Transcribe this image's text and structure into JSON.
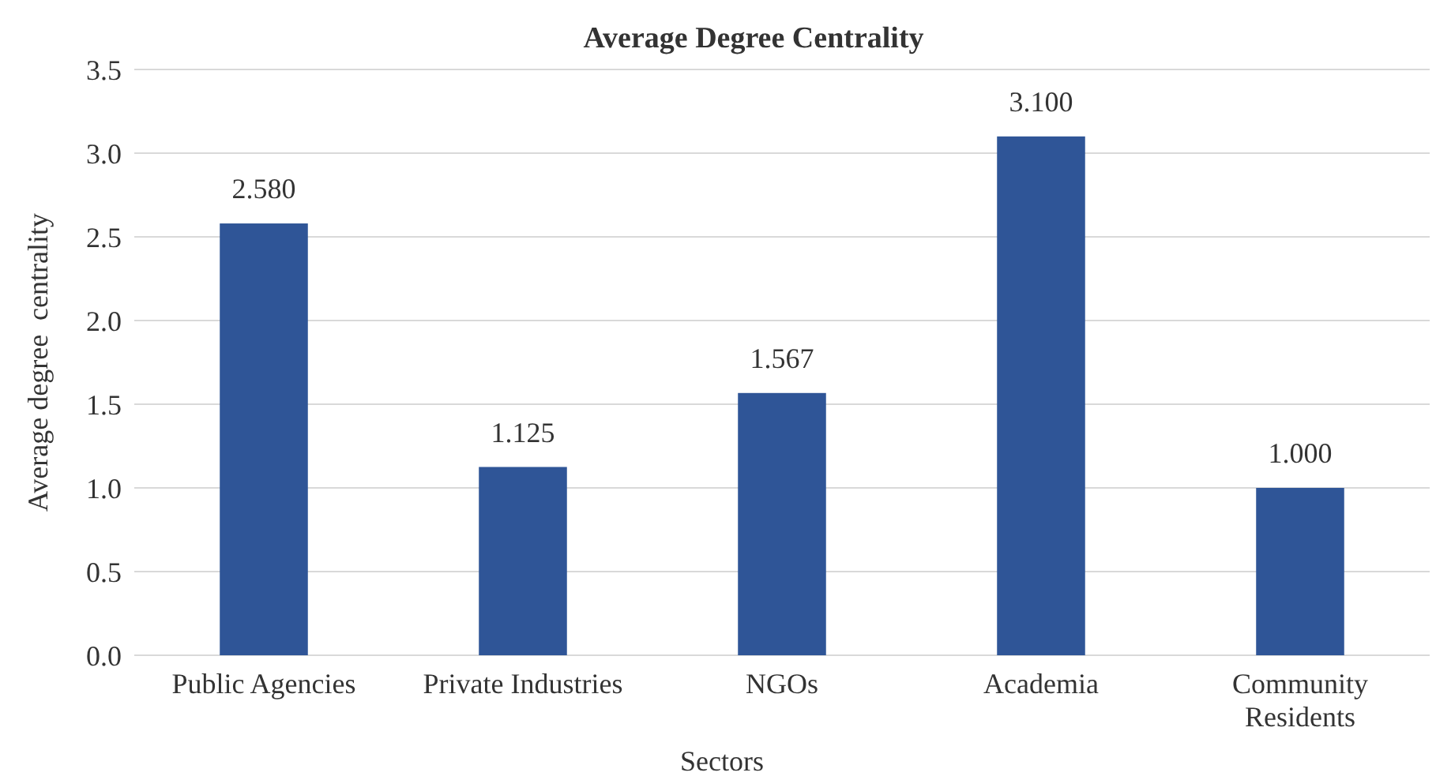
{
  "chart_data": {
    "type": "bar",
    "title": "Average Degree Centrality",
    "xlabel": "Sectors",
    "ylabel": "Average degree  centrality",
    "categories": [
      "Public Agencies",
      "Private Industries",
      "NGOs",
      "Academia",
      "Community Residents"
    ],
    "values": [
      2.58,
      1.125,
      1.567,
      3.1,
      1.0
    ],
    "value_labels": [
      "2.580",
      "1.125",
      "1.567",
      "3.100",
      "1.000"
    ],
    "color": "#2f5597",
    "ylim": [
      0,
      3.5
    ],
    "yticks": [
      {
        "value": 0,
        "label": "0.0"
      },
      {
        "value": 0.5,
        "label": "0.5"
      },
      {
        "value": 1,
        "label": "1.0"
      },
      {
        "value": 1.5,
        "label": "1.5"
      },
      {
        "value": 2,
        "label": "2.0"
      },
      {
        "value": 2.5,
        "label": "2.5"
      },
      {
        "value": 3,
        "label": "3.0"
      },
      {
        "value": 3.5,
        "label": "3.5"
      }
    ],
    "grid": "y"
  }
}
